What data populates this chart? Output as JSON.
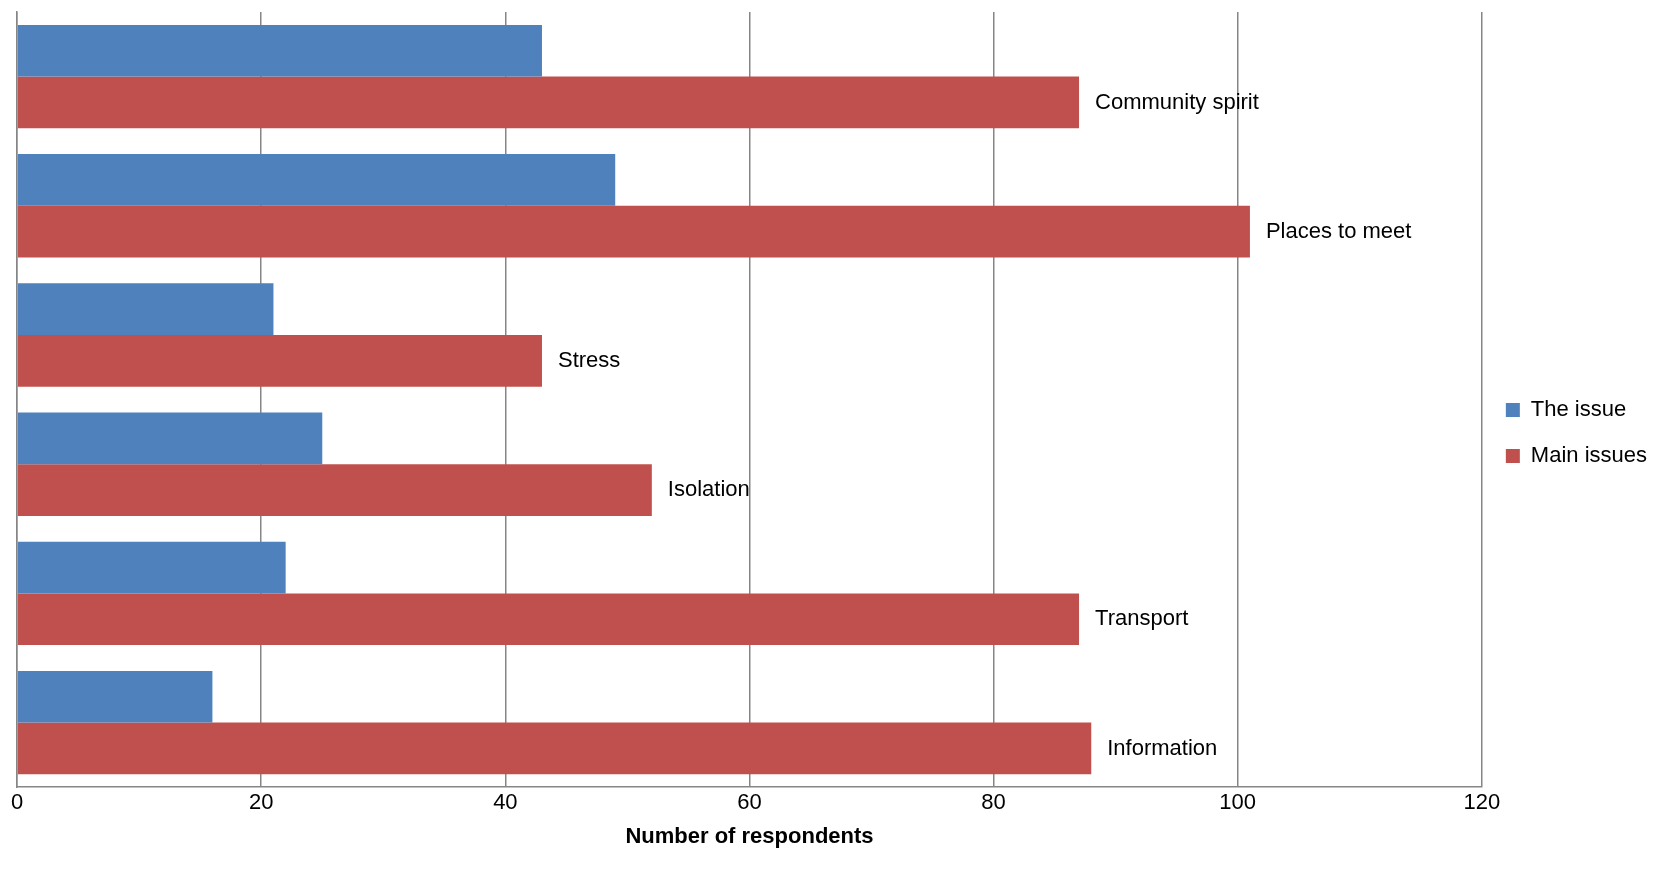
{
  "chart_data": {
    "type": "bar",
    "orientation": "horizontal",
    "categories": [
      "Community spirit",
      "Places to meet",
      "Stress",
      "Isolation",
      "Transport",
      "Information"
    ],
    "series": [
      {
        "name": "The issue",
        "color": "#4f81bd",
        "values": [
          43,
          49,
          21,
          25,
          22,
          16
        ]
      },
      {
        "name": "Main issues",
        "color": "#c0504d",
        "values": [
          87,
          101,
          43,
          52,
          87,
          88
        ]
      }
    ],
    "xlabel": "Number of respondents",
    "xlim": [
      0,
      120
    ],
    "xticks": [
      0,
      20,
      40,
      60,
      80,
      100,
      120
    ],
    "grid": "x",
    "legend": "right",
    "tick_labels": "x"
  }
}
